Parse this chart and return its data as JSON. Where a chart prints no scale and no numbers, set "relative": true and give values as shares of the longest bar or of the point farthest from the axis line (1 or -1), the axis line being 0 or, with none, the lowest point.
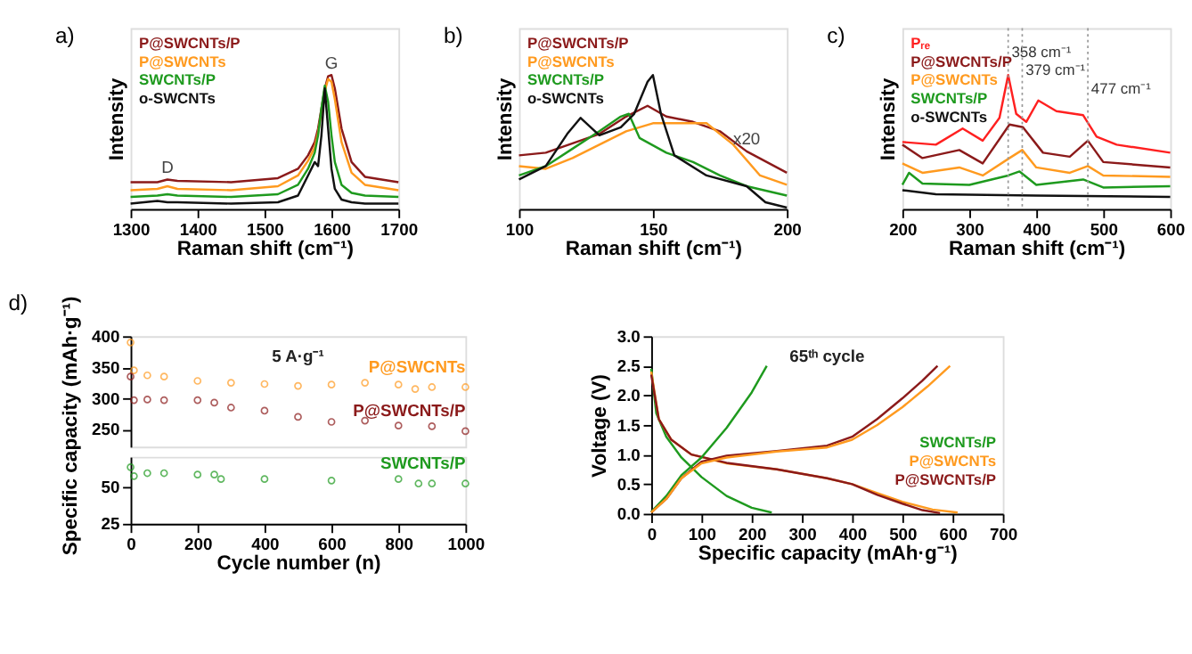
{
  "chart_data": [
    {
      "type": "line",
      "title": "a)",
      "xlabel": "Raman shift (cm⁻¹)",
      "ylabel": "Intensity",
      "relative": true,
      "xlim": [
        1300,
        1700
      ],
      "xticks": [
        1300,
        1400,
        1500,
        1600,
        1700
      ],
      "x": [
        1300,
        1340,
        1355,
        1370,
        1450,
        1520,
        1550,
        1565,
        1575,
        1580,
        1585,
        1590,
        1595,
        1600,
        1605,
        1615,
        1630,
        1650,
        1700
      ],
      "series": [
        {
          "name": "P@SWCNTs/P",
          "color": "#8b1a1a",
          "values": [
            0.2,
            0.2,
            0.22,
            0.21,
            0.2,
            0.23,
            0.3,
            0.4,
            0.5,
            0.6,
            0.75,
            0.9,
            0.99,
            1.0,
            0.9,
            0.6,
            0.35,
            0.24,
            0.2
          ]
        },
        {
          "name": "P@SWCNTs",
          "color": "#ff9a1f",
          "values": [
            0.14,
            0.15,
            0.17,
            0.15,
            0.14,
            0.17,
            0.25,
            0.36,
            0.46,
            0.57,
            0.72,
            0.88,
            0.97,
            0.95,
            0.82,
            0.5,
            0.27,
            0.18,
            0.14
          ]
        },
        {
          "name": "SWCNTs/P",
          "color": "#1e9a1e",
          "values": [
            0.09,
            0.1,
            0.11,
            0.1,
            0.09,
            0.11,
            0.18,
            0.3,
            0.42,
            0.55,
            0.75,
            0.92,
            0.8,
            0.55,
            0.35,
            0.18,
            0.12,
            0.1,
            0.09
          ]
        },
        {
          "name": "o-SWCNTs",
          "color": "#111111",
          "values": [
            0.04,
            0.06,
            0.05,
            0.05,
            0.04,
            0.05,
            0.1,
            0.25,
            0.35,
            0.32,
            0.55,
            0.9,
            0.6,
            0.3,
            0.15,
            0.07,
            0.05,
            0.04,
            0.04
          ]
        }
      ],
      "annotations": [
        {
          "text": "D",
          "x": 1355,
          "y": 0.22
        },
        {
          "text": "G",
          "x": 1600,
          "y": 1.0
        }
      ]
    },
    {
      "type": "line",
      "title": "b)",
      "xlabel": "Raman shift (cm⁻¹)",
      "ylabel": "Intensity",
      "relative": true,
      "xlim": [
        100,
        200
      ],
      "xticks": [
        100,
        150,
        200
      ],
      "series": [
        {
          "name": "P@SWCNTs/P",
          "color": "#8b1a1a",
          "x": [
            100,
            110,
            120,
            130,
            140,
            148,
            155,
            165,
            175,
            185,
            200
          ],
          "values": [
            0.4,
            0.42,
            0.49,
            0.56,
            0.69,
            0.77,
            0.69,
            0.65,
            0.58,
            0.43,
            0.27
          ]
        },
        {
          "name": "P@SWCNTs",
          "color": "#ff9a1f",
          "x": [
            100,
            110,
            120,
            130,
            140,
            150,
            160,
            170,
            180,
            190,
            200
          ],
          "values": [
            0.32,
            0.3,
            0.38,
            0.48,
            0.58,
            0.64,
            0.64,
            0.64,
            0.48,
            0.25,
            0.18
          ]
        },
        {
          "name": "SWCNTs/P",
          "color": "#1e9a1e",
          "x": [
            100,
            110,
            120,
            130,
            138,
            141,
            145,
            155,
            165,
            175,
            185,
            200
          ],
          "values": [
            0.25,
            0.32,
            0.45,
            0.58,
            0.69,
            0.71,
            0.53,
            0.42,
            0.35,
            0.25,
            0.17,
            0.1
          ]
        },
        {
          "name": "o-SWCNTs",
          "color": "#111111",
          "x": [
            100,
            110,
            118,
            123,
            130,
            138,
            143,
            148,
            150,
            153,
            158,
            170,
            185,
            192,
            200
          ],
          "values": [
            0.22,
            0.32,
            0.56,
            0.68,
            0.55,
            0.61,
            0.71,
            0.95,
            1.0,
            0.71,
            0.4,
            0.25,
            0.17,
            0.05,
            0.01
          ]
        }
      ],
      "annotations": [
        {
          "text": "x20",
          "x": 185,
          "y": 0.43
        }
      ]
    },
    {
      "type": "line",
      "title": "c)",
      "xlabel": "Raman shift (cm⁻¹)",
      "ylabel": "Intensity",
      "relative": true,
      "xlim": [
        200,
        600
      ],
      "xticks": [
        200,
        300,
        400,
        500,
        600
      ],
      "series": [
        {
          "name": "Pᵣₑ",
          "color": "#ff2020",
          "x": [
            200,
            250,
            290,
            320,
            345,
            358,
            370,
            385,
            403,
            430,
            470,
            490,
            520,
            600
          ],
          "values": [
            0.5,
            0.48,
            0.6,
            0.51,
            0.68,
            1.0,
            0.71,
            0.65,
            0.81,
            0.73,
            0.7,
            0.54,
            0.48,
            0.42
          ]
        },
        {
          "name": "P@SWCNTs/P",
          "color": "#8b1a1a",
          "x": [
            200,
            230,
            285,
            320,
            360,
            380,
            410,
            450,
            477,
            500,
            600
          ],
          "values": [
            0.48,
            0.38,
            0.44,
            0.34,
            0.63,
            0.61,
            0.42,
            0.39,
            0.51,
            0.35,
            0.31
          ]
        },
        {
          "name": "P@SWCNTs",
          "color": "#ff9a1f",
          "x": [
            200,
            230,
            285,
            320,
            360,
            379,
            400,
            450,
            477,
            500,
            600
          ],
          "values": [
            0.34,
            0.27,
            0.31,
            0.25,
            0.38,
            0.44,
            0.31,
            0.27,
            0.32,
            0.25,
            0.24
          ]
        },
        {
          "name": "SWCNTs/P",
          "color": "#1e9a1e",
          "x": [
            200,
            210,
            230,
            300,
            358,
            375,
            400,
            470,
            500,
            600
          ],
          "values": [
            0.18,
            0.27,
            0.19,
            0.18,
            0.25,
            0.28,
            0.18,
            0.22,
            0.16,
            0.17
          ]
        },
        {
          "name": "o-SWCNTs",
          "color": "#111111",
          "x": [
            200,
            250,
            400,
            600
          ],
          "values": [
            0.14,
            0.11,
            0.1,
            0.09
          ]
        }
      ],
      "ref_lines": [
        {
          "axis": "x",
          "value": 358,
          "label": "358 cm⁻¹",
          "color": "#999999",
          "line_style": "dotted"
        },
        {
          "axis": "x",
          "value": 379,
          "label": "379 cm⁻¹",
          "color": "#999999",
          "line_style": "dotted"
        },
        {
          "axis": "x",
          "value": 477,
          "label": "477 cm⁻¹",
          "color": "#999999",
          "line_style": "dotted"
        }
      ]
    },
    {
      "type": "scatter",
      "title": "d)",
      "ylabel": "Specific capacity (mAh·g⁻¹)",
      "marker": "circle",
      "xlim": [
        0,
        1000
      ],
      "xticks": [
        0,
        200,
        400,
        600,
        800,
        1000
      ],
      "ylim": [
        222,
        400
      ],
      "yticks": [
        250,
        300,
        350,
        400
      ],
      "tick_labels": "y",
      "series": [
        {
          "name": "P@SWCNTs",
          "color": "#ff9a1f",
          "x": [
            0,
            10,
            50,
            100,
            200,
            300,
            400,
            500,
            600,
            700,
            800,
            850,
            900,
            1000
          ],
          "values": [
            390,
            345,
            337,
            335,
            328,
            325,
            323,
            320,
            322,
            325,
            322,
            315,
            318,
            318
          ]
        },
        {
          "name": "P@SWCNTs/P",
          "color": "#8b1a1a",
          "x": [
            0,
            10,
            50,
            100,
            200,
            250,
            300,
            400,
            500,
            600,
            700,
            800,
            900,
            1000
          ],
          "values": [
            335,
            297,
            298,
            297,
            297,
            293,
            285,
            280,
            270,
            262,
            264,
            256,
            255,
            247
          ]
        }
      ],
      "annotations": [
        "5 A·g⁻¹"
      ]
    },
    {
      "type": "scatter",
      "xlabel": "Cycle number (n)",
      "marker": "circle",
      "xlim": [
        0,
        1000
      ],
      "xticks": [
        0,
        200,
        400,
        600,
        800,
        1000
      ],
      "ylim": [
        25,
        70
      ],
      "yticks": [
        25,
        50
      ],
      "series": [
        {
          "name": "SWCNTs/P",
          "color": "#1e9a1e",
          "x": [
            0,
            10,
            50,
            100,
            200,
            250,
            270,
            400,
            600,
            800,
            860,
            900,
            1000
          ],
          "values": [
            63,
            57,
            59,
            59,
            58,
            58,
            55,
            55,
            54,
            55,
            52,
            52,
            52
          ]
        }
      ]
    },
    {
      "type": "line",
      "xlabel": "Specific capacity (mAh·g⁻¹)",
      "ylabel": "Voltage (V)",
      "legend": "right",
      "xlim": [
        0,
        700
      ],
      "xticks": [
        0,
        100,
        200,
        300,
        400,
        500,
        600,
        700
      ],
      "ylim": [
        0,
        3
      ],
      "yticks": [
        {
          "value": 0,
          "label": "0.0"
        },
        0.5,
        {
          "value": 1,
          "label": "1.0"
        },
        1.5,
        {
          "value": 2,
          "label": "2.0"
        },
        2.5,
        {
          "value": 3,
          "label": "3.0"
        }
      ],
      "series": [
        {
          "name": "SWCNTs/P",
          "color": "#1e9a1e",
          "x": [
            0,
            10,
            30,
            60,
            100,
            150,
            200,
            240
          ],
          "values": [
            2.45,
            1.7,
            1.3,
            0.95,
            0.62,
            0.3,
            0.1,
            0.02
          ]
        },
        {
          "name": "P@SWCNTs",
          "color": "#ff9a1f",
          "x": [
            0,
            15,
            40,
            80,
            150,
            250,
            350,
            400,
            450,
            500,
            560,
            610
          ],
          "values": [
            2.4,
            1.6,
            1.25,
            1.0,
            0.85,
            0.75,
            0.6,
            0.5,
            0.35,
            0.2,
            0.07,
            0.02
          ]
        },
        {
          "name": "P@SWCNTs/P",
          "color": "#8b1a1a",
          "x": [
            0,
            15,
            40,
            80,
            150,
            250,
            350,
            400,
            450,
            500,
            540,
            575
          ],
          "values": [
            2.35,
            1.6,
            1.25,
            1.0,
            0.86,
            0.75,
            0.6,
            0.5,
            0.32,
            0.17,
            0.06,
            0.01
          ]
        },
        {
          "color": "#1e9a1e",
          "x": [
            0,
            30,
            60,
            100,
            150,
            200,
            230
          ],
          "values": [
            0.03,
            0.3,
            0.65,
            0.95,
            1.45,
            2.05,
            2.5
          ]
        },
        {
          "color": "#8b1a1a",
          "x": [
            0,
            30,
            60,
            100,
            150,
            250,
            350,
            400,
            450,
            500,
            540,
            570
          ],
          "values": [
            0.02,
            0.25,
            0.6,
            0.88,
            0.98,
            1.06,
            1.15,
            1.3,
            1.6,
            1.95,
            2.25,
            2.5
          ]
        },
        {
          "color": "#ff9a1f",
          "x": [
            0,
            30,
            60,
            100,
            150,
            250,
            350,
            400,
            450,
            500,
            550,
            595
          ],
          "values": [
            0.02,
            0.25,
            0.6,
            0.85,
            0.95,
            1.05,
            1.12,
            1.25,
            1.5,
            1.8,
            2.15,
            2.5
          ]
        }
      ],
      "annotations": [
        "65ᵗʰ cycle"
      ]
    }
  ]
}
